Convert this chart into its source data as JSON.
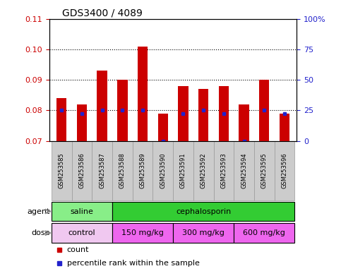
{
  "title": "GDS3400 / 4089",
  "samples": [
    "GSM253585",
    "GSM253586",
    "GSM253587",
    "GSM253588",
    "GSM253589",
    "GSM253590",
    "GSM253591",
    "GSM253592",
    "GSM253593",
    "GSM253594",
    "GSM253595",
    "GSM253596"
  ],
  "bar_values": [
    0.084,
    0.082,
    0.093,
    0.09,
    0.101,
    0.079,
    0.088,
    0.087,
    0.088,
    0.082,
    0.09,
    0.079
  ],
  "percentile_values": [
    0.08,
    0.079,
    0.08,
    0.08,
    0.08,
    0.07,
    0.079,
    0.08,
    0.079,
    0.07,
    0.08,
    0.079
  ],
  "ylim": [
    0.07,
    0.11
  ],
  "yticks": [
    0.07,
    0.08,
    0.09,
    0.1,
    0.11
  ],
  "right_yticks": [
    0,
    25,
    50,
    75,
    100
  ],
  "bar_color": "#cc0000",
  "percentile_color": "#2222cc",
  "bar_width": 0.5,
  "agent_groups": [
    {
      "label": "saline",
      "start": 0,
      "end": 3,
      "color": "#88ee88"
    },
    {
      "label": "cephalosporin",
      "start": 3,
      "end": 12,
      "color": "#33cc33"
    }
  ],
  "dose_groups": [
    {
      "label": "control",
      "start": 0,
      "end": 3,
      "color": "#f0c8f0"
    },
    {
      "label": "150 mg/kg",
      "start": 3,
      "end": 6,
      "color": "#ee66ee"
    },
    {
      "label": "300 mg/kg",
      "start": 6,
      "end": 9,
      "color": "#ee66ee"
    },
    {
      "label": "600 mg/kg",
      "start": 9,
      "end": 12,
      "color": "#ee66ee"
    }
  ],
  "tick_color_left": "#cc0000",
  "tick_color_right": "#2222cc",
  "label_bg_color": "#cccccc",
  "label_border_color": "#999999"
}
